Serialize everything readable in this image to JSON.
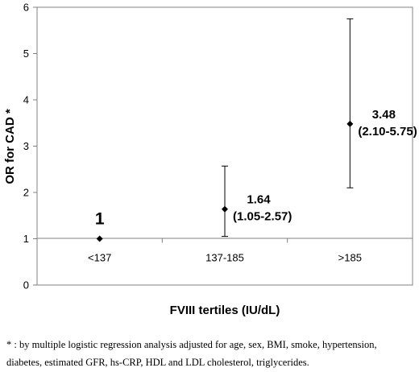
{
  "chart_data": {
    "type": "scatter",
    "xlabel": "FVIII tertiles (IU/dL)",
    "ylabel": "OR for CAD *",
    "categories": [
      "<137",
      "137-185",
      ">185"
    ],
    "values": [
      1,
      1.64,
      3.48
    ],
    "ci_lower": [
      null,
      1.05,
      2.1
    ],
    "ci_upper": [
      null,
      2.57,
      5.75
    ],
    "ylim": [
      0,
      6
    ],
    "yticks": [
      "0",
      "1",
      "2",
      "3",
      "4",
      "5",
      "6"
    ],
    "annotations": [
      {
        "value_label": "1",
        "ci_label": ""
      },
      {
        "value_label": "1.64",
        "ci_label": "(1.05-2.57)"
      },
      {
        "value_label": "3.48",
        "ci_label": "(2.10-5.75)"
      }
    ],
    "reference_line": 1,
    "grid": false,
    "marker": "diamond"
  },
  "footnote": {
    "line1": "* : by multiple logistic regression analysis adjusted for age, sex, BMI, smoke, hypertension,",
    "line2": "diabetes, estimated GFR, hs-CRP, HDL and LDL cholesterol, triglycerides."
  }
}
